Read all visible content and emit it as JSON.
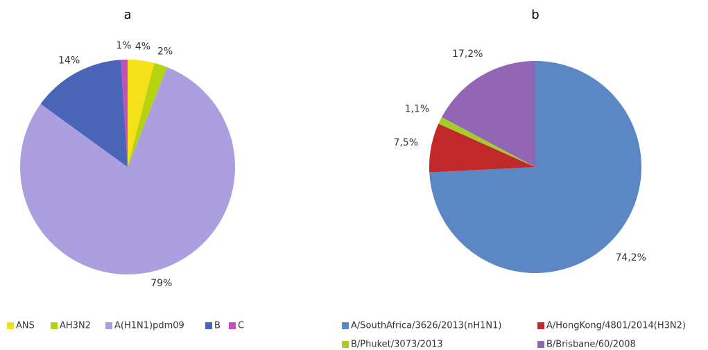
{
  "chart_data": [
    {
      "type": "pie",
      "title": "a",
      "categories": [
        "ANS",
        "AH3N2",
        "A(H1N1)pdm09",
        "B",
        "C"
      ],
      "values": [
        4,
        2,
        79,
        14,
        1
      ],
      "value_labels": [
        "4%",
        "2%",
        "79%",
        "14%",
        "1%"
      ],
      "colors": [
        "#f5e11a",
        "#b5d30f",
        "#ab9fe0",
        "#4a64b8",
        "#c44fc0"
      ]
    },
    {
      "type": "pie",
      "title": "b",
      "categories": [
        "A/SouthAfrica/3626/2013(nH1N1)",
        "A/HongKong/4801/2014(H3N2)",
        "B/Phuket/3073/2013",
        "B/Brisbane/60/2008"
      ],
      "values": [
        74.2,
        7.5,
        1.1,
        17.2
      ],
      "value_labels": [
        "74,2%",
        "7,5%",
        "1,1%",
        "17,2%"
      ],
      "colors": [
        "#5b88c4",
        "#c0282a",
        "#a6cc2a",
        "#9265b5"
      ]
    }
  ]
}
